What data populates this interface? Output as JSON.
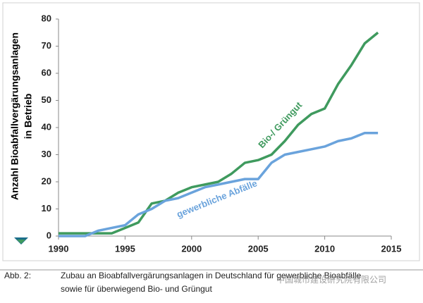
{
  "chart_data": {
    "type": "line",
    "y_label": [
      "Anzahl Bioabfallvergärungsanlagen",
      "in Betrieb"
    ],
    "x": [
      1990,
      1991,
      1992,
      1993,
      1994,
      1995,
      1996,
      1997,
      1998,
      1999,
      2000,
      2001,
      2002,
      2003,
      2004,
      2005,
      2006,
      2007,
      2008,
      2009,
      2010,
      2011,
      2012,
      2013,
      2014
    ],
    "series": [
      {
        "name": "Bio-/ Grüngut",
        "color": "#3f9a5e",
        "values": [
          1,
          1,
          1,
          1,
          1,
          3,
          5,
          12,
          13,
          16,
          18,
          19,
          20,
          23,
          27,
          28,
          30,
          35,
          41,
          45,
          47,
          56,
          63,
          71,
          75
        ]
      },
      {
        "name": "gewerbliche Abfälle",
        "color": "#6aa3dc",
        "values": [
          0,
          0,
          0,
          2,
          3,
          4,
          8,
          10,
          13,
          14,
          16,
          18,
          19,
          20,
          21,
          21,
          27,
          30,
          31,
          32,
          33,
          35,
          36,
          38,
          38
        ]
      }
    ],
    "xlim": [
      1990,
      2015
    ],
    "xticks": [
      1990,
      1995,
      2000,
      2005,
      2010,
      2015
    ],
    "ylim": [
      0,
      80
    ],
    "yticks": [
      0,
      10,
      20,
      30,
      40,
      50,
      60,
      70,
      80
    ],
    "grid": false
  },
  "caption": {
    "label": "Abb. 2:",
    "lines": [
      "Zubau an Bioabfallvergärungsanlagen in Deutschland für gewerbliche Bioabfälle",
      "sowie für überwiegend Bio- und Grüngut"
    ]
  },
  "watermark": "中国城市建设研究院有限公司"
}
